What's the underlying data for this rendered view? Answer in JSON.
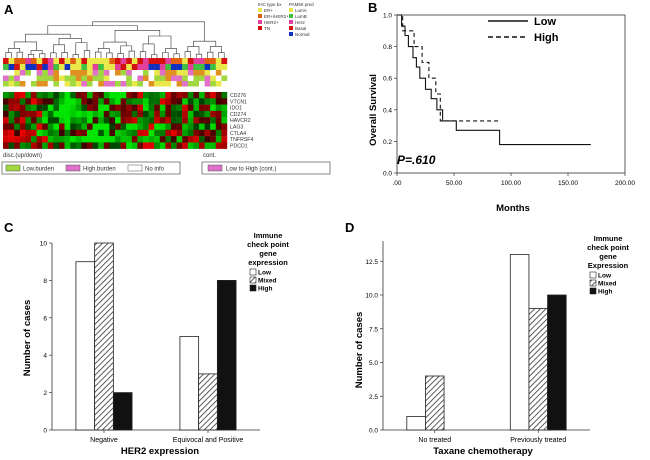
{
  "panels": {
    "a": {
      "letter": "A",
      "genes": [
        "CD276",
        "VTCN1",
        "IDO1",
        "CD274",
        "HAVCR2",
        "LAG3",
        "CTLA4",
        "TNFRSF4",
        "PDCD1"
      ],
      "ihc_legend_title": "IHC type bx",
      "ihc_legend": [
        {
          "label": "ER+",
          "color": "#e8e84a"
        },
        {
          "label": "ER+/HER2+",
          "color": "#e06010"
        },
        {
          "label": "HER2+",
          "color": "#e0409a"
        },
        {
          "label": "TN",
          "color": "#d41010"
        }
      ],
      "pam50_legend_title": "PAM50 pred",
      "pam50_legend": [
        {
          "label": "LumA",
          "color": "#e8e84a"
        },
        {
          "label": "LumB",
          "color": "#40c040"
        },
        {
          "label": "Her2",
          "color": "#e0409a"
        },
        {
          "label": "Basal",
          "color": "#d41010"
        },
        {
          "label": "Normal",
          "color": "#1030c0"
        }
      ],
      "disc_label": "disc.(up/down)",
      "cont_label": "cont.",
      "burden_legend": [
        {
          "label": "Low.burden",
          "color": "#a0d840"
        },
        {
          "label": "High.burden",
          "color": "#e070c8"
        },
        {
          "label": "No info",
          "color": "#ffffff"
        }
      ],
      "cont_legend": "Low to High (cont.)"
    },
    "b": {
      "letter": "B"
    },
    "c": {
      "letter": "C"
    },
    "d": {
      "letter": "D"
    }
  },
  "chart_data": [
    {
      "id": "survival",
      "type": "line",
      "title": "",
      "xlabel": "Months",
      "ylabel": "Overall Survival",
      "xlim": [
        0,
        200
      ],
      "ylim": [
        0,
        1.0
      ],
      "xticks": [
        ".00",
        "50.00",
        "100.00",
        "150.00",
        "200.00"
      ],
      "xtick_values": [
        0,
        50,
        100,
        150,
        200
      ],
      "yticks": [
        "0.0",
        "0.2",
        "0.4",
        "0.6",
        "0.8",
        "1.0"
      ],
      "ytick_values": [
        0,
        0.2,
        0.4,
        0.6,
        0.8,
        1.0
      ],
      "annotation": "P=.610",
      "series": [
        {
          "name": "Low",
          "style": "solid",
          "x": [
            0,
            4,
            4,
            7,
            7,
            10,
            10,
            14,
            14,
            17,
            17,
            20,
            20,
            25,
            25,
            30,
            30,
            35,
            35,
            40,
            40,
            52,
            52,
            90,
            90,
            170
          ],
          "y": [
            1.0,
            1.0,
            0.93,
            0.93,
            0.87,
            0.87,
            0.8,
            0.8,
            0.73,
            0.73,
            0.67,
            0.67,
            0.6,
            0.6,
            0.53,
            0.53,
            0.47,
            0.47,
            0.4,
            0.4,
            0.33,
            0.33,
            0.27,
            0.27,
            0.18,
            0.18
          ]
        },
        {
          "name": "High",
          "style": "dashed",
          "x": [
            0,
            5,
            5,
            15,
            15,
            22,
            22,
            28,
            28,
            34,
            34,
            38,
            38,
            90
          ],
          "y": [
            1.0,
            1.0,
            0.9,
            0.9,
            0.8,
            0.8,
            0.7,
            0.7,
            0.6,
            0.6,
            0.5,
            0.5,
            0.33,
            0.33
          ]
        }
      ]
    },
    {
      "id": "her2",
      "type": "bar",
      "title": "",
      "xlabel": "HER2 expression",
      "ylabel": "Number of cases",
      "ylim": [
        0,
        10
      ],
      "yticks": [
        "0",
        "2",
        "4",
        "6",
        "8",
        "10"
      ],
      "ytick_values": [
        0,
        2,
        4,
        6,
        8,
        10
      ],
      "categories": [
        "Negative",
        "Equivocal and Positive"
      ],
      "legend_title": [
        "Immune",
        "check point",
        "gene",
        "expression"
      ],
      "series": [
        {
          "name": "Low",
          "fill": "white",
          "values": [
            9,
            5
          ]
        },
        {
          "name": "Mixed",
          "fill": "hatch",
          "values": [
            10,
            3
          ]
        },
        {
          "name": "High",
          "fill": "black",
          "values": [
            2,
            8
          ]
        }
      ]
    },
    {
      "id": "taxane",
      "type": "bar",
      "title": "",
      "xlabel": "Taxane chemotherapy",
      "ylabel": "Number of cases",
      "ylim": [
        0,
        14
      ],
      "yticks": [
        "0.0",
        "2.5",
        "5.0",
        "7.5",
        "10.0",
        "12.5"
      ],
      "ytick_values": [
        0,
        2.5,
        5,
        7.5,
        10,
        12.5
      ],
      "categories": [
        "No treated",
        "Previously treated"
      ],
      "legend_title": [
        "Immune",
        "check point",
        "gene",
        "Expression"
      ],
      "series": [
        {
          "name": "Low",
          "fill": "white",
          "values": [
            1,
            13
          ]
        },
        {
          "name": "Mixed",
          "fill": "hatch",
          "values": [
            4,
            9
          ]
        },
        {
          "name": "High",
          "fill": "black",
          "values": [
            0,
            10
          ]
        }
      ]
    }
  ]
}
